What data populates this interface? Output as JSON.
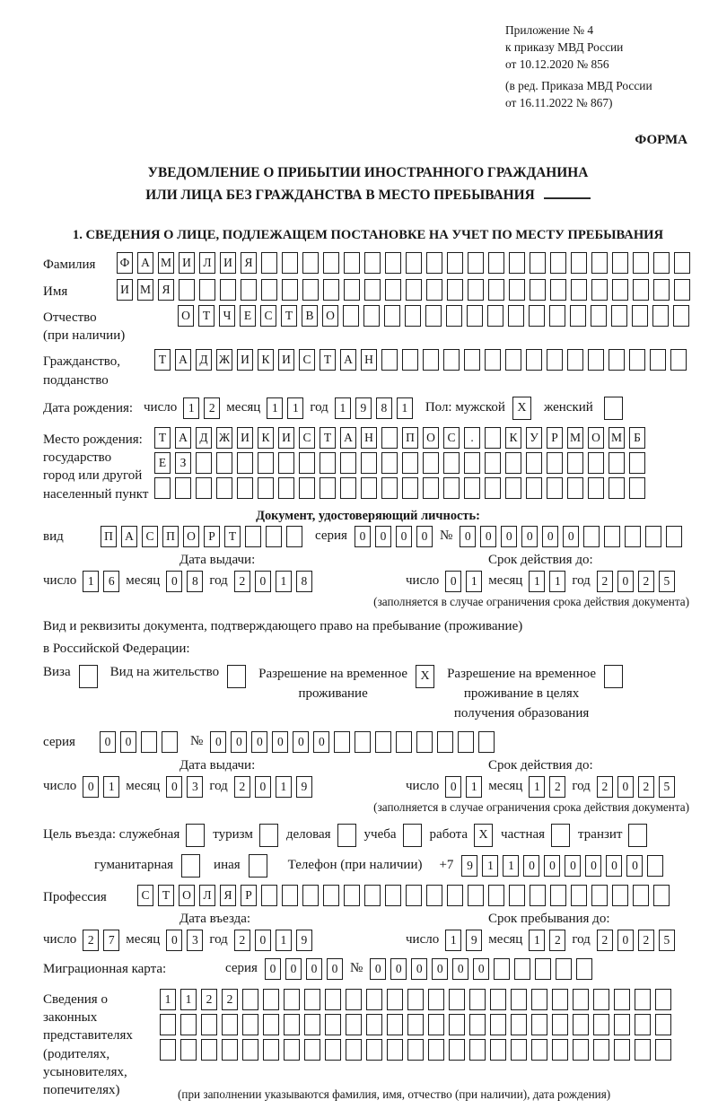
{
  "header": {
    "appendix_line1": "Приложение № 4",
    "appendix_line2": "к приказу МВД России",
    "appendix_line3": "от 10.12.2020 № 856",
    "edition_line1": "(в ред. Приказа МВД России",
    "edition_line2": "от 16.11.2022 № 867)",
    "form_label": "ФОРМА"
  },
  "title": {
    "line1": "УВЕДОМЛЕНИЕ О ПРИБЫТИИ ИНОСТРАННОГО ГРАЖДАНИНА",
    "line2": "ИЛИ ЛИЦА БЕЗ ГРАЖДАНСТВА В МЕСТО ПРЕБЫВАНИЯ"
  },
  "section1_heading": "1. СВЕДЕНИЯ О ЛИЦЕ, ПОДЛЕЖАЩЕМ ПОСТАНОВКЕ НА УЧЕТ ПО МЕСТУ ПРЕБЫВАНИЯ",
  "labels": {
    "surname": "Фамилия",
    "name": "Имя",
    "patronymic_1": "Отчество",
    "patronymic_2": "(при наличии)",
    "citizenship_1": "Гражданство,",
    "citizenship_2": "подданство",
    "birth_date": "Дата рождения:",
    "day": "число",
    "month": "месяц",
    "year": "год",
    "sex_male": "Пол: мужской",
    "sex_female": "женский",
    "birthplace_1": "Место рождения:",
    "birthplace_2": "государство",
    "birthplace_3": "город или другой",
    "birthplace_4": "населенный пункт",
    "identity_heading": "Документ, удостоверяющий личность:",
    "doc_type": "вид",
    "series": "серия",
    "number": "№",
    "issue_date": "Дата выдачи:",
    "valid_until": "Срок действия до:",
    "validity_note": "(заполняется в случае ограничения срока действия документа)",
    "residence_line1": "Вид и реквизиты документа, подтверждающего право на пребывание (проживание)",
    "residence_line2": "в Российской Федерации:",
    "visa": "Виза",
    "residence_permit": "Вид на жительство",
    "temp_permit_1": "Разрешение на временное",
    "temp_permit_2": "проживание",
    "edu_permit_1": "Разрешение на временное",
    "edu_permit_2": "проживание в целях",
    "edu_permit_3": "получения образования",
    "purpose_official": "Цель въезда: служебная",
    "purpose_tourism": "туризм",
    "purpose_business": "деловая",
    "purpose_study": "учеба",
    "purpose_work": "работа",
    "purpose_private": "частная",
    "purpose_transit": "транзит",
    "purpose_humanitarian": "гуманитарная",
    "purpose_other": "иная",
    "phone": "Телефон (при наличии)",
    "phone_prefix": "+7",
    "profession": "Профессия",
    "entry_date": "Дата въезда:",
    "stay_until": "Срок пребывания до:",
    "migration_card": "Миграционная карта:",
    "representatives_1": "Сведения о",
    "representatives_2": "законных",
    "representatives_3": "представителях",
    "representatives_4": "(родителях,",
    "representatives_5": "усыновителях,",
    "representatives_6": "попечителях)",
    "representatives_note": "(при заполнении указываются фамилия, имя, отчество (при наличии), дата рождения)"
  },
  "fields": {
    "surname": {
      "text": "ФАМИЛИЯ",
      "len": 28
    },
    "name": {
      "text": "ИМЯ",
      "len": 28
    },
    "patronymic": {
      "text": "ОТЧЕСТВО",
      "len": 25
    },
    "citizenship": {
      "text": "ТАДЖИКИСТАН",
      "len": 26
    },
    "birth_day": {
      "text": "12",
      "len": 2
    },
    "birth_month": {
      "text": "11",
      "len": 2
    },
    "birth_year": {
      "text": "1981",
      "len": 4
    },
    "sex_male_mark": "X",
    "sex_female_mark": "",
    "birthplace_row1": {
      "text": "ТАДЖИКИСТАН ПОС. КУРМОМБ",
      "len": 24
    },
    "birthplace_row2": {
      "text": "ЕЗ",
      "len": 24
    },
    "birthplace_row3": {
      "text": "",
      "len": 24
    },
    "identity": {
      "type": {
        "text": "ПАСПОРТ",
        "len": 10
      },
      "series": {
        "text": "0000",
        "len": 4
      },
      "number": {
        "text": "000000",
        "len": 11
      },
      "issue_day": {
        "text": "16",
        "len": 2
      },
      "issue_month": {
        "text": "08",
        "len": 2
      },
      "issue_year": {
        "text": "2018",
        "len": 4
      },
      "valid_day": {
        "text": "01",
        "len": 2
      },
      "valid_month": {
        "text": "11",
        "len": 2
      },
      "valid_year": {
        "text": "2025",
        "len": 4
      }
    },
    "residence": {
      "visa_mark": "",
      "permit_mark": "",
      "temp_mark": "X",
      "edu_mark": "",
      "series": {
        "text": "00",
        "len": 4
      },
      "number": {
        "text": "000000",
        "len": 14
      },
      "issue_day": {
        "text": "01",
        "len": 2
      },
      "issue_month": {
        "text": "03",
        "len": 2
      },
      "issue_year": {
        "text": "2019",
        "len": 4
      },
      "valid_day": {
        "text": "01",
        "len": 2
      },
      "valid_month": {
        "text": "12",
        "len": 2
      },
      "valid_year": {
        "text": "2025",
        "len": 4
      }
    },
    "purpose_marks": {
      "official": "",
      "tourism": "",
      "business": "",
      "study": "",
      "work": "X",
      "private": "",
      "transit": "",
      "humanitarian": "",
      "other": ""
    },
    "phone": {
      "text": "911000000",
      "len": 10
    },
    "profession": {
      "text": "СТОЛЯР",
      "len": 26
    },
    "entry_day": {
      "text": "27",
      "len": 2
    },
    "entry_month": {
      "text": "03",
      "len": 2
    },
    "entry_year": {
      "text": "2019",
      "len": 4
    },
    "stay_day": {
      "text": "19",
      "len": 2
    },
    "stay_month": {
      "text": "12",
      "len": 2
    },
    "stay_year": {
      "text": "2025",
      "len": 4
    },
    "migration": {
      "series": {
        "text": "0000",
        "len": 4
      },
      "number": {
        "text": "000000",
        "len": 11
      }
    },
    "representatives_row1": {
      "text": "1122",
      "len": 25
    },
    "representatives_row2": {
      "text": "",
      "len": 25
    },
    "representatives_row3": {
      "text": "",
      "len": 25
    }
  }
}
